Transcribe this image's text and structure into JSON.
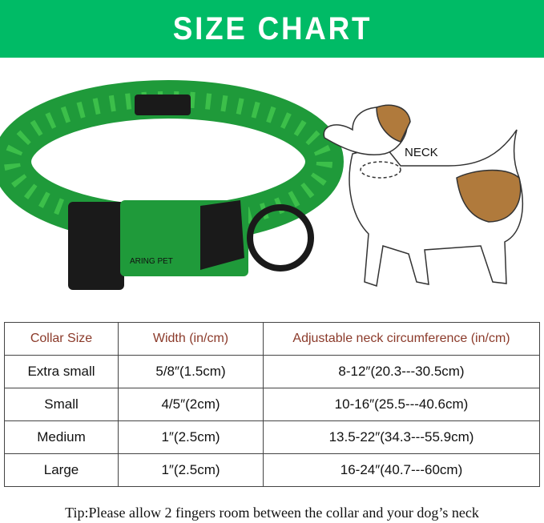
{
  "title": "SIZE CHART",
  "brand_logo_text": "ARING PET",
  "dog_label": "NECK",
  "colors": {
    "banner": "#00bb66",
    "header_text": "#8b3a2a",
    "collar_green": "#1f9a3a"
  },
  "table": {
    "headers": [
      "Collar Size",
      "Width (in/cm)",
      "Adjustable neck circumference (in/cm)"
    ],
    "rows": [
      [
        "Extra small",
        "5/8″(1.5cm)",
        "8-12″(20.3---30.5cm)"
      ],
      [
        "Small",
        "4/5″(2cm)",
        "10-16″(25.5---40.6cm)"
      ],
      [
        "Medium",
        "1″(2.5cm)",
        "13.5-22″(34.3---55.9cm)"
      ],
      [
        "Large",
        "1″(2.5cm)",
        "16-24″(40.7---60cm)"
      ]
    ]
  },
  "tip": "Tip:Please allow 2 fingers room between the collar and your dog’s neck"
}
